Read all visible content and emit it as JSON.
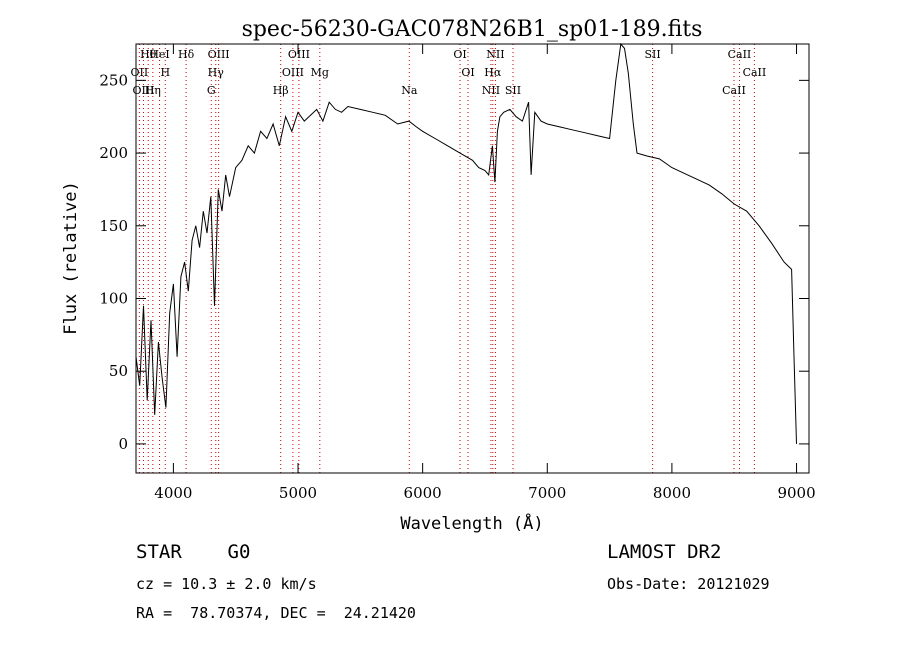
{
  "chart_data": {
    "type": "line",
    "title": "spec-56230-GAC078N26B1_sp01-189.fits",
    "xlabel": "Wavelength (Å)",
    "ylabel": "Flux (relative)",
    "xlim": [
      3700,
      9100
    ],
    "ylim": [
      -20,
      275
    ],
    "x_ticks": [
      4000,
      5000,
      6000,
      7000,
      8000,
      9000
    ],
    "y_ticks": [
      0,
      50,
      100,
      150,
      200,
      250
    ],
    "grid": false,
    "series": [
      {
        "x": [
          3700,
          3730,
          3760,
          3790,
          3820,
          3850,
          3880,
          3910,
          3940,
          3970,
          4000,
          4030,
          4060,
          4090,
          4120,
          4150,
          4180,
          4210,
          4240,
          4270,
          4300,
          4330,
          4360,
          4390,
          4420,
          4450,
          4500,
          4550,
          4600,
          4650,
          4700,
          4750,
          4800,
          4850,
          4900,
          4950,
          5000,
          5050,
          5100,
          5150,
          5200,
          5250,
          5300,
          5350,
          5400,
          5500,
          5600,
          5700,
          5800,
          5890,
          5950,
          6000,
          6100,
          6200,
          6300,
          6400,
          6450,
          6500,
          6530,
          6560,
          6580,
          6600,
          6620,
          6650,
          6700,
          6750,
          6800,
          6850,
          6870,
          6900,
          6950,
          7000,
          7100,
          7200,
          7300,
          7400,
          7500,
          7550,
          7590,
          7620,
          7650,
          7690,
          7720,
          7800,
          7900,
          8000,
          8100,
          8200,
          8300,
          8400,
          8500,
          8600,
          8700,
          8800,
          8900,
          8960,
          8980,
          9000
        ],
        "y": [
          60,
          40,
          95,
          30,
          85,
          20,
          70,
          45,
          25,
          90,
          110,
          60,
          115,
          125,
          105,
          140,
          150,
          135,
          160,
          145,
          170,
          95,
          175,
          160,
          185,
          170,
          190,
          195,
          205,
          200,
          215,
          210,
          220,
          205,
          225,
          215,
          228,
          222,
          226,
          230,
          222,
          235,
          230,
          228,
          232,
          230,
          228,
          226,
          220,
          222,
          218,
          215,
          210,
          205,
          200,
          195,
          190,
          188,
          185,
          205,
          180,
          215,
          225,
          228,
          230,
          225,
          222,
          235,
          185,
          228,
          222,
          220,
          218,
          216,
          214,
          212,
          210,
          250,
          275,
          272,
          255,
          220,
          200,
          198,
          196,
          190,
          186,
          182,
          178,
          172,
          165,
          160,
          150,
          138,
          125,
          120,
          60,
          0
        ]
      }
    ],
    "line_markers": [
      {
        "label": "Hθ",
        "x": 3798
      },
      {
        "label": "OII",
        "x": 3727
      },
      {
        "label": "OIII",
        "x": 3760
      },
      {
        "label": "HeI",
        "x": 3889
      },
      {
        "label": "H",
        "x": 3935
      },
      {
        "label": "Hη",
        "x": 3835
      },
      {
        "label": "Hδ",
        "x": 4102
      },
      {
        "label": "Hγ",
        "x": 4340
      },
      {
        "label": "G",
        "x": 4304
      },
      {
        "label": "OIII",
        "x": 4363
      },
      {
        "label": "OIII",
        "x": 4959
      },
      {
        "label": "Hβ",
        "x": 4861
      },
      {
        "label": "OIII",
        "x": 5007
      },
      {
        "label": "Mg",
        "x": 5175
      },
      {
        "label": "Na",
        "x": 5893
      },
      {
        "label": "OI",
        "x": 6300
      },
      {
        "label": "OI",
        "x": 6364
      },
      {
        "label": "NII",
        "x": 6548
      },
      {
        "label": "NII",
        "x": 6584
      },
      {
        "label": "Hα",
        "x": 6563
      },
      {
        "label": "SII",
        "x": 6725
      },
      {
        "label": "SII",
        "x": 7845
      },
      {
        "label": "CaII",
        "x": 8662
      },
      {
        "label": "CaII",
        "x": 8498
      },
      {
        "label": "CaII",
        "x": 8542
      }
    ]
  },
  "footer": {
    "object": "STAR    G0",
    "cz": "cz = 10.3 ± 2.0 km/s",
    "coords": "RA =  78.70374, DEC =  24.21420",
    "survey": "LAMOST DR2",
    "obsdate": "Obs-Date: 20121029"
  }
}
